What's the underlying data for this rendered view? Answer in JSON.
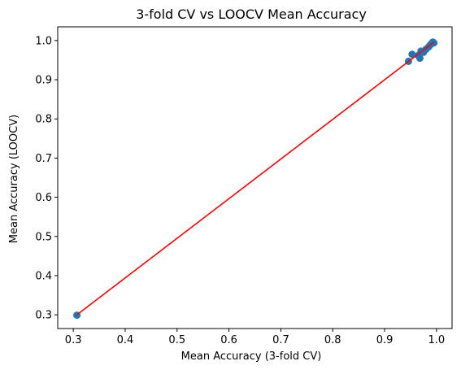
{
  "chart_data": {
    "type": "scatter",
    "title": "3-fold CV vs LOOCV Mean Accuracy",
    "xlabel": "Mean Accuracy (3-fold CV)",
    "ylabel": "Mean Accuracy (LOOCV)",
    "xlim": [
      0.27,
      1.03
    ],
    "ylim": [
      0.265,
      1.035
    ],
    "xticks": [
      "0.3",
      "0.4",
      "0.5",
      "0.6",
      "0.7",
      "0.8",
      "0.9",
      "1.0"
    ],
    "yticks": [
      "0.3",
      "0.4",
      "0.5",
      "0.6",
      "0.7",
      "0.8",
      "0.9",
      "1.0"
    ],
    "grid": false,
    "legend": "none",
    "point_color": "#1f77b4",
    "line_color": "#ff0000",
    "points": [
      {
        "x": 0.307,
        "y": 0.299
      },
      {
        "x": 0.946,
        "y": 0.947
      },
      {
        "x": 0.953,
        "y": 0.965
      },
      {
        "x": 0.965,
        "y": 0.962
      },
      {
        "x": 0.968,
        "y": 0.955
      },
      {
        "x": 0.97,
        "y": 0.973
      },
      {
        "x": 0.975,
        "y": 0.97
      },
      {
        "x": 0.98,
        "y": 0.978
      },
      {
        "x": 0.985,
        "y": 0.984
      },
      {
        "x": 0.988,
        "y": 0.989
      },
      {
        "x": 0.991,
        "y": 0.993
      },
      {
        "x": 0.993,
        "y": 0.996
      },
      {
        "x": 0.995,
        "y": 0.994
      }
    ],
    "fit_line": {
      "x": [
        0.307,
        0.995
      ],
      "y": [
        0.3,
        0.996
      ]
    }
  }
}
